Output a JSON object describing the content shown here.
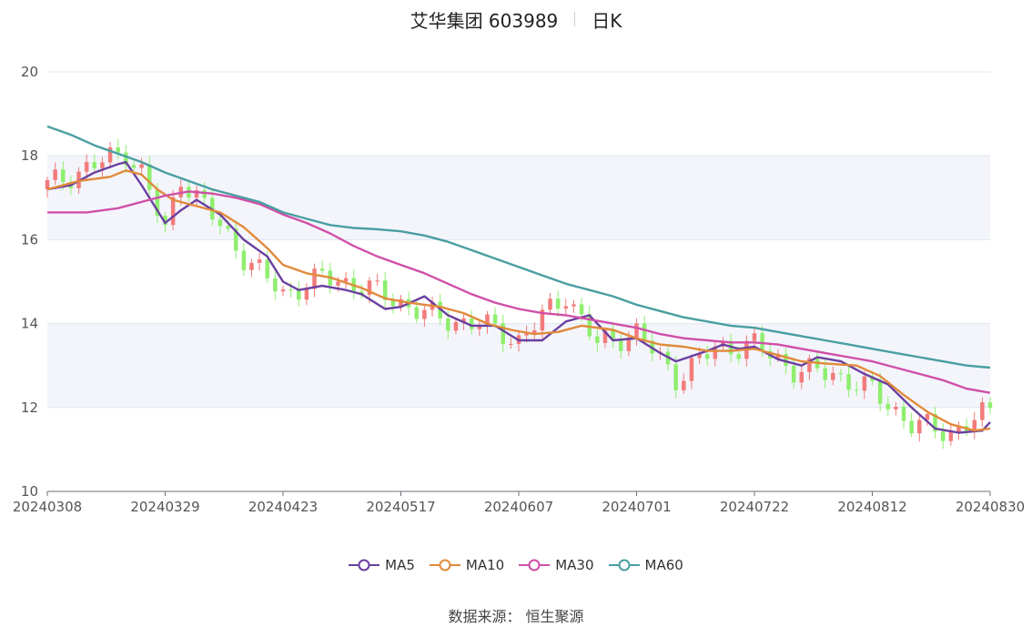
{
  "title": "艾华集团 603989",
  "period": "日K",
  "source_label": "数据来源：",
  "source_value": "恒生聚源",
  "colors": {
    "up": "#f27b7b",
    "down": "#8fee6e",
    "ma5": "#6a3fa0",
    "ma10": "#e18a3b",
    "ma30": "#d04fa8",
    "ma60": "#4a9ea1",
    "grid_band": "#f3f5fb",
    "grid_line": "#dfe5f2"
  },
  "chart_data": {
    "type": "candlestick",
    "ylim": [
      10,
      20
    ],
    "yticks": [
      10,
      12,
      14,
      16,
      18,
      20
    ],
    "x_tick_labels": [
      "20240308",
      "20240329",
      "20240423",
      "20240517",
      "20240607",
      "20240701",
      "20240722",
      "20240812",
      "20240830"
    ],
    "x_tick_index": [
      0,
      15,
      30,
      45,
      60,
      75,
      90,
      105,
      120
    ],
    "n_days": 121,
    "legend": [
      "MA5",
      "MA10",
      "MA30",
      "MA60"
    ],
    "ohlc_key": [
      {
        "i": 0,
        "close": 17.3
      },
      {
        "i": 10,
        "close": 18.1
      },
      {
        "i": 12,
        "close": 17.6
      },
      {
        "i": 15,
        "close": 16.2
      },
      {
        "i": 17,
        "close": 17.5
      },
      {
        "i": 20,
        "close": 16.8
      },
      {
        "i": 25,
        "close": 15.6
      },
      {
        "i": 30,
        "close": 14.7
      },
      {
        "i": 35,
        "close": 15.1
      },
      {
        "i": 40,
        "close": 14.9
      },
      {
        "i": 45,
        "close": 14.5
      },
      {
        "i": 50,
        "close": 14.1
      },
      {
        "i": 55,
        "close": 14.0
      },
      {
        "i": 60,
        "close": 13.6
      },
      {
        "i": 66,
        "close": 14.7
      },
      {
        "i": 70,
        "close": 13.5
      },
      {
        "i": 75,
        "close": 13.8
      },
      {
        "i": 80,
        "close": 12.7
      },
      {
        "i": 85,
        "close": 13.4
      },
      {
        "i": 90,
        "close": 13.5
      },
      {
        "i": 95,
        "close": 12.9
      },
      {
        "i": 100,
        "close": 12.8
      },
      {
        "i": 105,
        "close": 12.4
      },
      {
        "i": 110,
        "close": 11.6
      },
      {
        "i": 115,
        "close": 11.4
      },
      {
        "i": 120,
        "close": 11.9
      }
    ],
    "ma_series": [
      {
        "name": "MA5",
        "points": [
          [
            0,
            17.2
          ],
          [
            3,
            17.3
          ],
          [
            6,
            17.6
          ],
          [
            9,
            17.8
          ],
          [
            10,
            17.85
          ],
          [
            12,
            17.3
          ],
          [
            15,
            16.4
          ],
          [
            17,
            16.7
          ],
          [
            19,
            16.95
          ],
          [
            22,
            16.6
          ],
          [
            25,
            16.0
          ],
          [
            28,
            15.6
          ],
          [
            30,
            15.0
          ],
          [
            32,
            14.8
          ],
          [
            35,
            14.9
          ],
          [
            38,
            14.8
          ],
          [
            40,
            14.7
          ],
          [
            43,
            14.35
          ],
          [
            45,
            14.4
          ],
          [
            48,
            14.65
          ],
          [
            51,
            14.2
          ],
          [
            54,
            13.95
          ],
          [
            57,
            13.95
          ],
          [
            60,
            13.6
          ],
          [
            63,
            13.6
          ],
          [
            66,
            14.05
          ],
          [
            69,
            14.2
          ],
          [
            72,
            13.6
          ],
          [
            75,
            13.65
          ],
          [
            78,
            13.3
          ],
          [
            80,
            13.1
          ],
          [
            84,
            13.35
          ],
          [
            86,
            13.5
          ],
          [
            88,
            13.4
          ],
          [
            90,
            13.45
          ],
          [
            93,
            13.15
          ],
          [
            96,
            13.0
          ],
          [
            98,
            13.2
          ],
          [
            101,
            13.1
          ],
          [
            104,
            12.8
          ],
          [
            107,
            12.55
          ],
          [
            110,
            12.0
          ],
          [
            113,
            11.5
          ],
          [
            116,
            11.4
          ],
          [
            119,
            11.45
          ],
          [
            120,
            11.65
          ]
        ]
      },
      {
        "name": "MA10",
        "points": [
          [
            0,
            17.2
          ],
          [
            4,
            17.4
          ],
          [
            8,
            17.5
          ],
          [
            10,
            17.65
          ],
          [
            12,
            17.55
          ],
          [
            14,
            17.2
          ],
          [
            16,
            16.95
          ],
          [
            19,
            16.8
          ],
          [
            22,
            16.65
          ],
          [
            25,
            16.3
          ],
          [
            28,
            15.8
          ],
          [
            30,
            15.4
          ],
          [
            33,
            15.2
          ],
          [
            36,
            15.1
          ],
          [
            40,
            14.85
          ],
          [
            43,
            14.6
          ],
          [
            46,
            14.5
          ],
          [
            50,
            14.4
          ],
          [
            53,
            14.25
          ],
          [
            56,
            14.0
          ],
          [
            59,
            13.85
          ],
          [
            62,
            13.75
          ],
          [
            65,
            13.8
          ],
          [
            68,
            13.95
          ],
          [
            72,
            13.85
          ],
          [
            75,
            13.65
          ],
          [
            78,
            13.5
          ],
          [
            81,
            13.45
          ],
          [
            84,
            13.35
          ],
          [
            87,
            13.35
          ],
          [
            90,
            13.4
          ],
          [
            93,
            13.25
          ],
          [
            96,
            13.1
          ],
          [
            99,
            13.05
          ],
          [
            103,
            13.0
          ],
          [
            106,
            12.75
          ],
          [
            109,
            12.3
          ],
          [
            112,
            11.9
          ],
          [
            115,
            11.6
          ],
          [
            118,
            11.45
          ],
          [
            120,
            11.5
          ]
        ]
      },
      {
        "name": "MA30",
        "points": [
          [
            0,
            16.65
          ],
          [
            5,
            16.65
          ],
          [
            9,
            16.75
          ],
          [
            12,
            16.9
          ],
          [
            15,
            17.05
          ],
          [
            18,
            17.15
          ],
          [
            21,
            17.1
          ],
          [
            24,
            17.0
          ],
          [
            27,
            16.85
          ],
          [
            30,
            16.6
          ],
          [
            33,
            16.4
          ],
          [
            36,
            16.15
          ],
          [
            39,
            15.85
          ],
          [
            42,
            15.6
          ],
          [
            45,
            15.4
          ],
          [
            48,
            15.2
          ],
          [
            51,
            14.95
          ],
          [
            54,
            14.7
          ],
          [
            57,
            14.5
          ],
          [
            60,
            14.35
          ],
          [
            63,
            14.25
          ],
          [
            66,
            14.2
          ],
          [
            69,
            14.1
          ],
          [
            72,
            14.0
          ],
          [
            75,
            13.9
          ],
          [
            78,
            13.75
          ],
          [
            81,
            13.65
          ],
          [
            84,
            13.6
          ],
          [
            87,
            13.55
          ],
          [
            90,
            13.55
          ],
          [
            93,
            13.5
          ],
          [
            96,
            13.4
          ],
          [
            99,
            13.3
          ],
          [
            102,
            13.2
          ],
          [
            105,
            13.1
          ],
          [
            108,
            12.95
          ],
          [
            111,
            12.8
          ],
          [
            114,
            12.65
          ],
          [
            117,
            12.45
          ],
          [
            120,
            12.35
          ]
        ]
      },
      {
        "name": "MA60",
        "points": [
          [
            0,
            18.7
          ],
          [
            3,
            18.5
          ],
          [
            6,
            18.25
          ],
          [
            9,
            18.05
          ],
          [
            12,
            17.85
          ],
          [
            15,
            17.6
          ],
          [
            18,
            17.4
          ],
          [
            21,
            17.2
          ],
          [
            24,
            17.05
          ],
          [
            27,
            16.9
          ],
          [
            30,
            16.65
          ],
          [
            33,
            16.5
          ],
          [
            36,
            16.35
          ],
          [
            39,
            16.28
          ],
          [
            42,
            16.25
          ],
          [
            45,
            16.2
          ],
          [
            48,
            16.1
          ],
          [
            51,
            15.95
          ],
          [
            54,
            15.75
          ],
          [
            57,
            15.55
          ],
          [
            60,
            15.35
          ],
          [
            63,
            15.15
          ],
          [
            66,
            14.95
          ],
          [
            69,
            14.8
          ],
          [
            72,
            14.65
          ],
          [
            75,
            14.45
          ],
          [
            78,
            14.3
          ],
          [
            81,
            14.15
          ],
          [
            84,
            14.05
          ],
          [
            87,
            13.95
          ],
          [
            90,
            13.9
          ],
          [
            93,
            13.8
          ],
          [
            96,
            13.7
          ],
          [
            99,
            13.6
          ],
          [
            102,
            13.5
          ],
          [
            105,
            13.4
          ],
          [
            108,
            13.3
          ],
          [
            111,
            13.2
          ],
          [
            114,
            13.1
          ],
          [
            117,
            13.0
          ],
          [
            120,
            12.95
          ]
        ]
      }
    ]
  }
}
